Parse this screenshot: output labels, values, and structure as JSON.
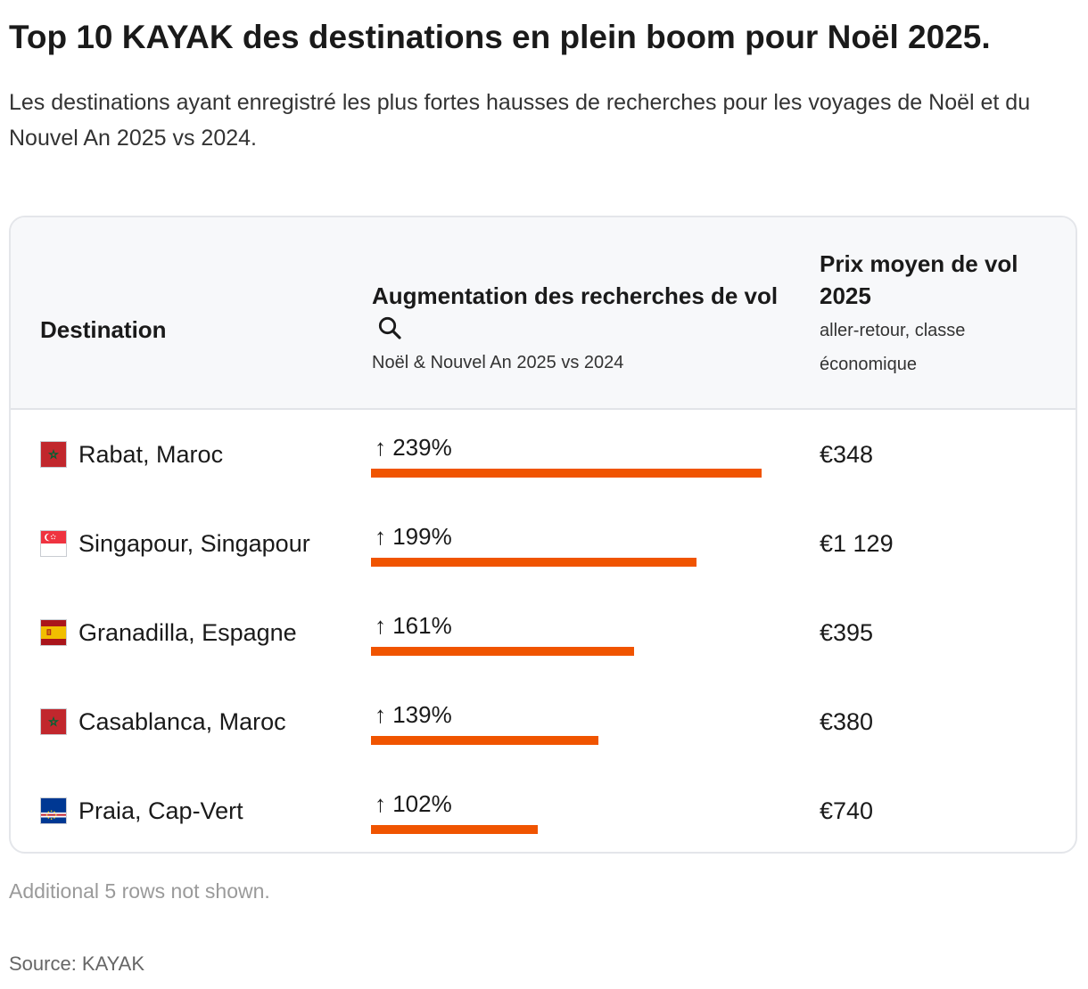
{
  "header": {
    "title": "Top 10 KAYAK des destinations en plein boom pour Noël 2025.",
    "subtitle": "Les destinations ayant enregistré les plus fortes hausses de recherches pour les voyages de Noël et du Nouvel An 2025 vs 2024."
  },
  "table": {
    "columns": {
      "destination": "Destination",
      "increase_title": "Augmentation des recherches de vol",
      "increase_icon": "search-icon",
      "increase_subtitle": "Noël & Nouvel An 2025 vs 2024",
      "price_title": "Prix moyen de vol 2025",
      "price_subtitle": "aller-retour, classe économique"
    },
    "rows": [
      {
        "destination": "Rabat, Maroc",
        "flag": "morocco-flag",
        "increase_label": "↑ 239%",
        "price": "€348"
      },
      {
        "destination": "Singapour, Singapour",
        "flag": "singapore-flag",
        "increase_label": "↑ 199%",
        "price": "€1 129"
      },
      {
        "destination": "Granadilla, Espagne",
        "flag": "spain-flag",
        "increase_label": "↑ 161%",
        "price": "€395"
      },
      {
        "destination": "Casablanca, Maroc",
        "flag": "morocco-flag",
        "increase_label": "↑ 139%",
        "price": "€380"
      },
      {
        "destination": "Praia, Cap-Vert",
        "flag": "cape-verde-flag",
        "increase_label": "↑ 102%",
        "price": "€740"
      }
    ]
  },
  "colors": {
    "bar": "#f05400",
    "header_background": "#f7f8fa",
    "border": "#e4e6ea"
  },
  "footer": {
    "note": "Additional 5 rows not shown.",
    "source": "Source: KAYAK"
  },
  "chart_data": {
    "type": "bar",
    "orientation": "horizontal",
    "categories": [
      "Rabat, Maroc",
      "Singapour, Singapour",
      "Granadilla, Espagne",
      "Casablanca, Maroc",
      "Praia, Cap-Vert"
    ],
    "values": [
      239,
      199,
      161,
      139,
      102
    ],
    "unit": "%",
    "secondary_values": [
      "€348",
      "€1 129",
      "€395",
      "€380",
      "€740"
    ]
  }
}
